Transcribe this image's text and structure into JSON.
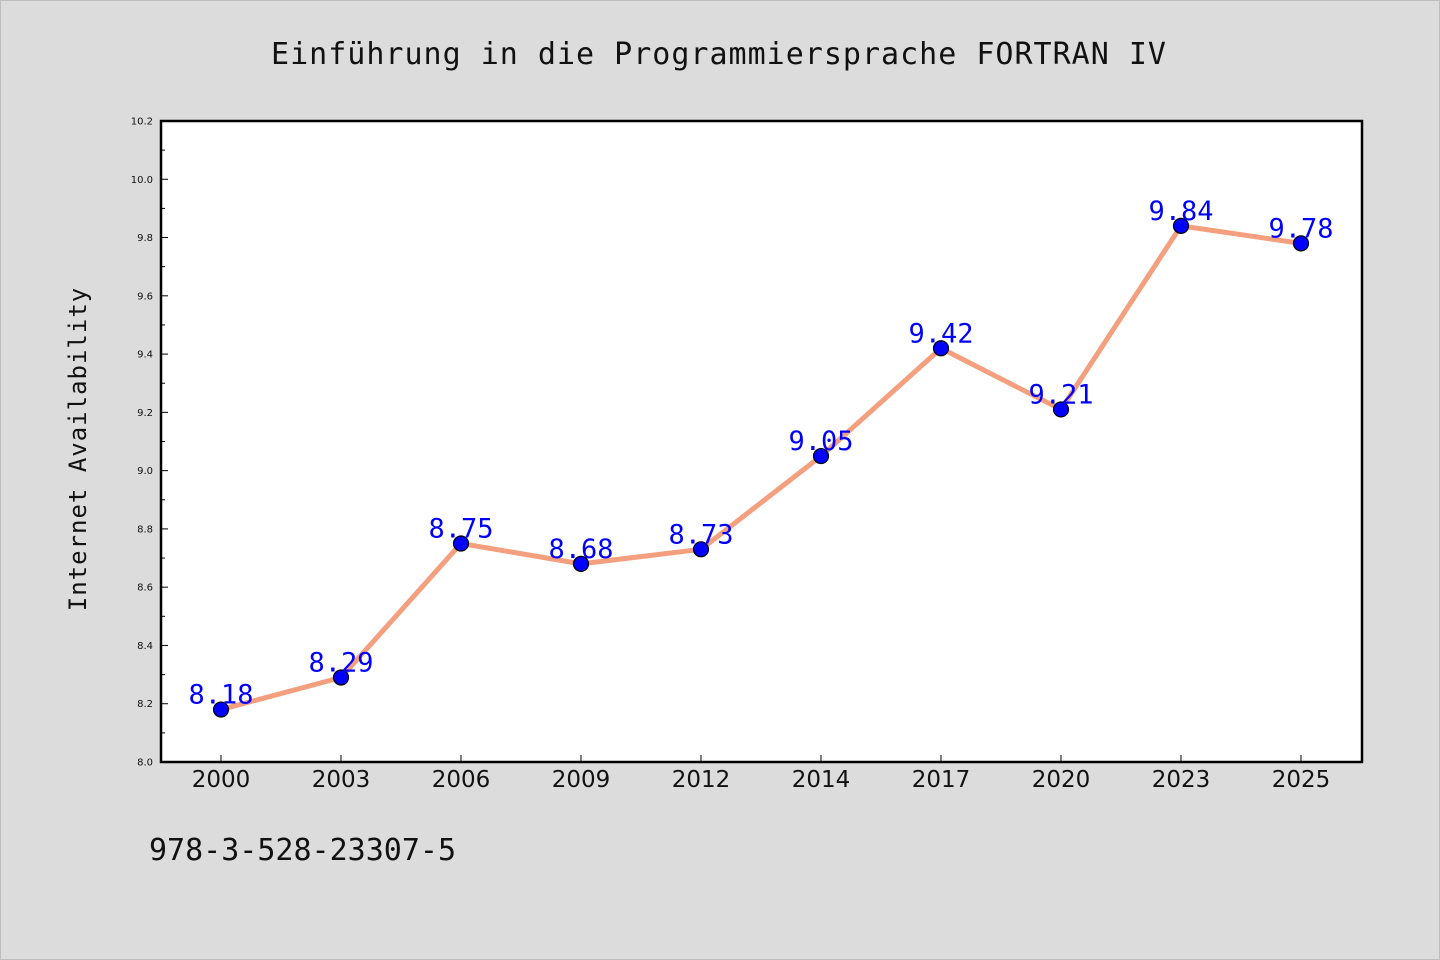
{
  "chart_data": {
    "type": "line",
    "title": "Einführung in die Programmiersprache FORTRAN IV",
    "xlabel": "",
    "ylabel": "Internet Availability",
    "categories": [
      "2000",
      "2003",
      "2006",
      "2009",
      "2012",
      "2014",
      "2017",
      "2020",
      "2023",
      "2025"
    ],
    "series": [
      {
        "values": [
          8.18,
          8.29,
          8.75,
          8.68,
          8.73,
          9.05,
          9.42,
          9.21,
          9.84,
          9.78
        ],
        "data_labels": [
          "8.18",
          "8.29",
          "8.75",
          "8.68",
          "8.73",
          "9.05",
          "9.42",
          "9.21",
          "9.84",
          "9.78"
        ]
      }
    ],
    "ylim": [
      8.0,
      10.2
    ],
    "yticks": [
      "8.0",
      "8.2",
      "8.4",
      "8.6",
      "8.8",
      "9.0",
      "9.2",
      "9.4",
      "9.6",
      "9.8",
      "10.0",
      "10.2"
    ],
    "grid": false,
    "legend": false,
    "colors": {
      "line": "#f4a07e",
      "marker_fill": "#0000ff",
      "marker_edge": "#000000",
      "data_label": "#0000ff",
      "background": "#dcdcdc",
      "plot_background": "#ffffff"
    }
  },
  "footer": {
    "isbn": "978-3-528-23307-5"
  }
}
